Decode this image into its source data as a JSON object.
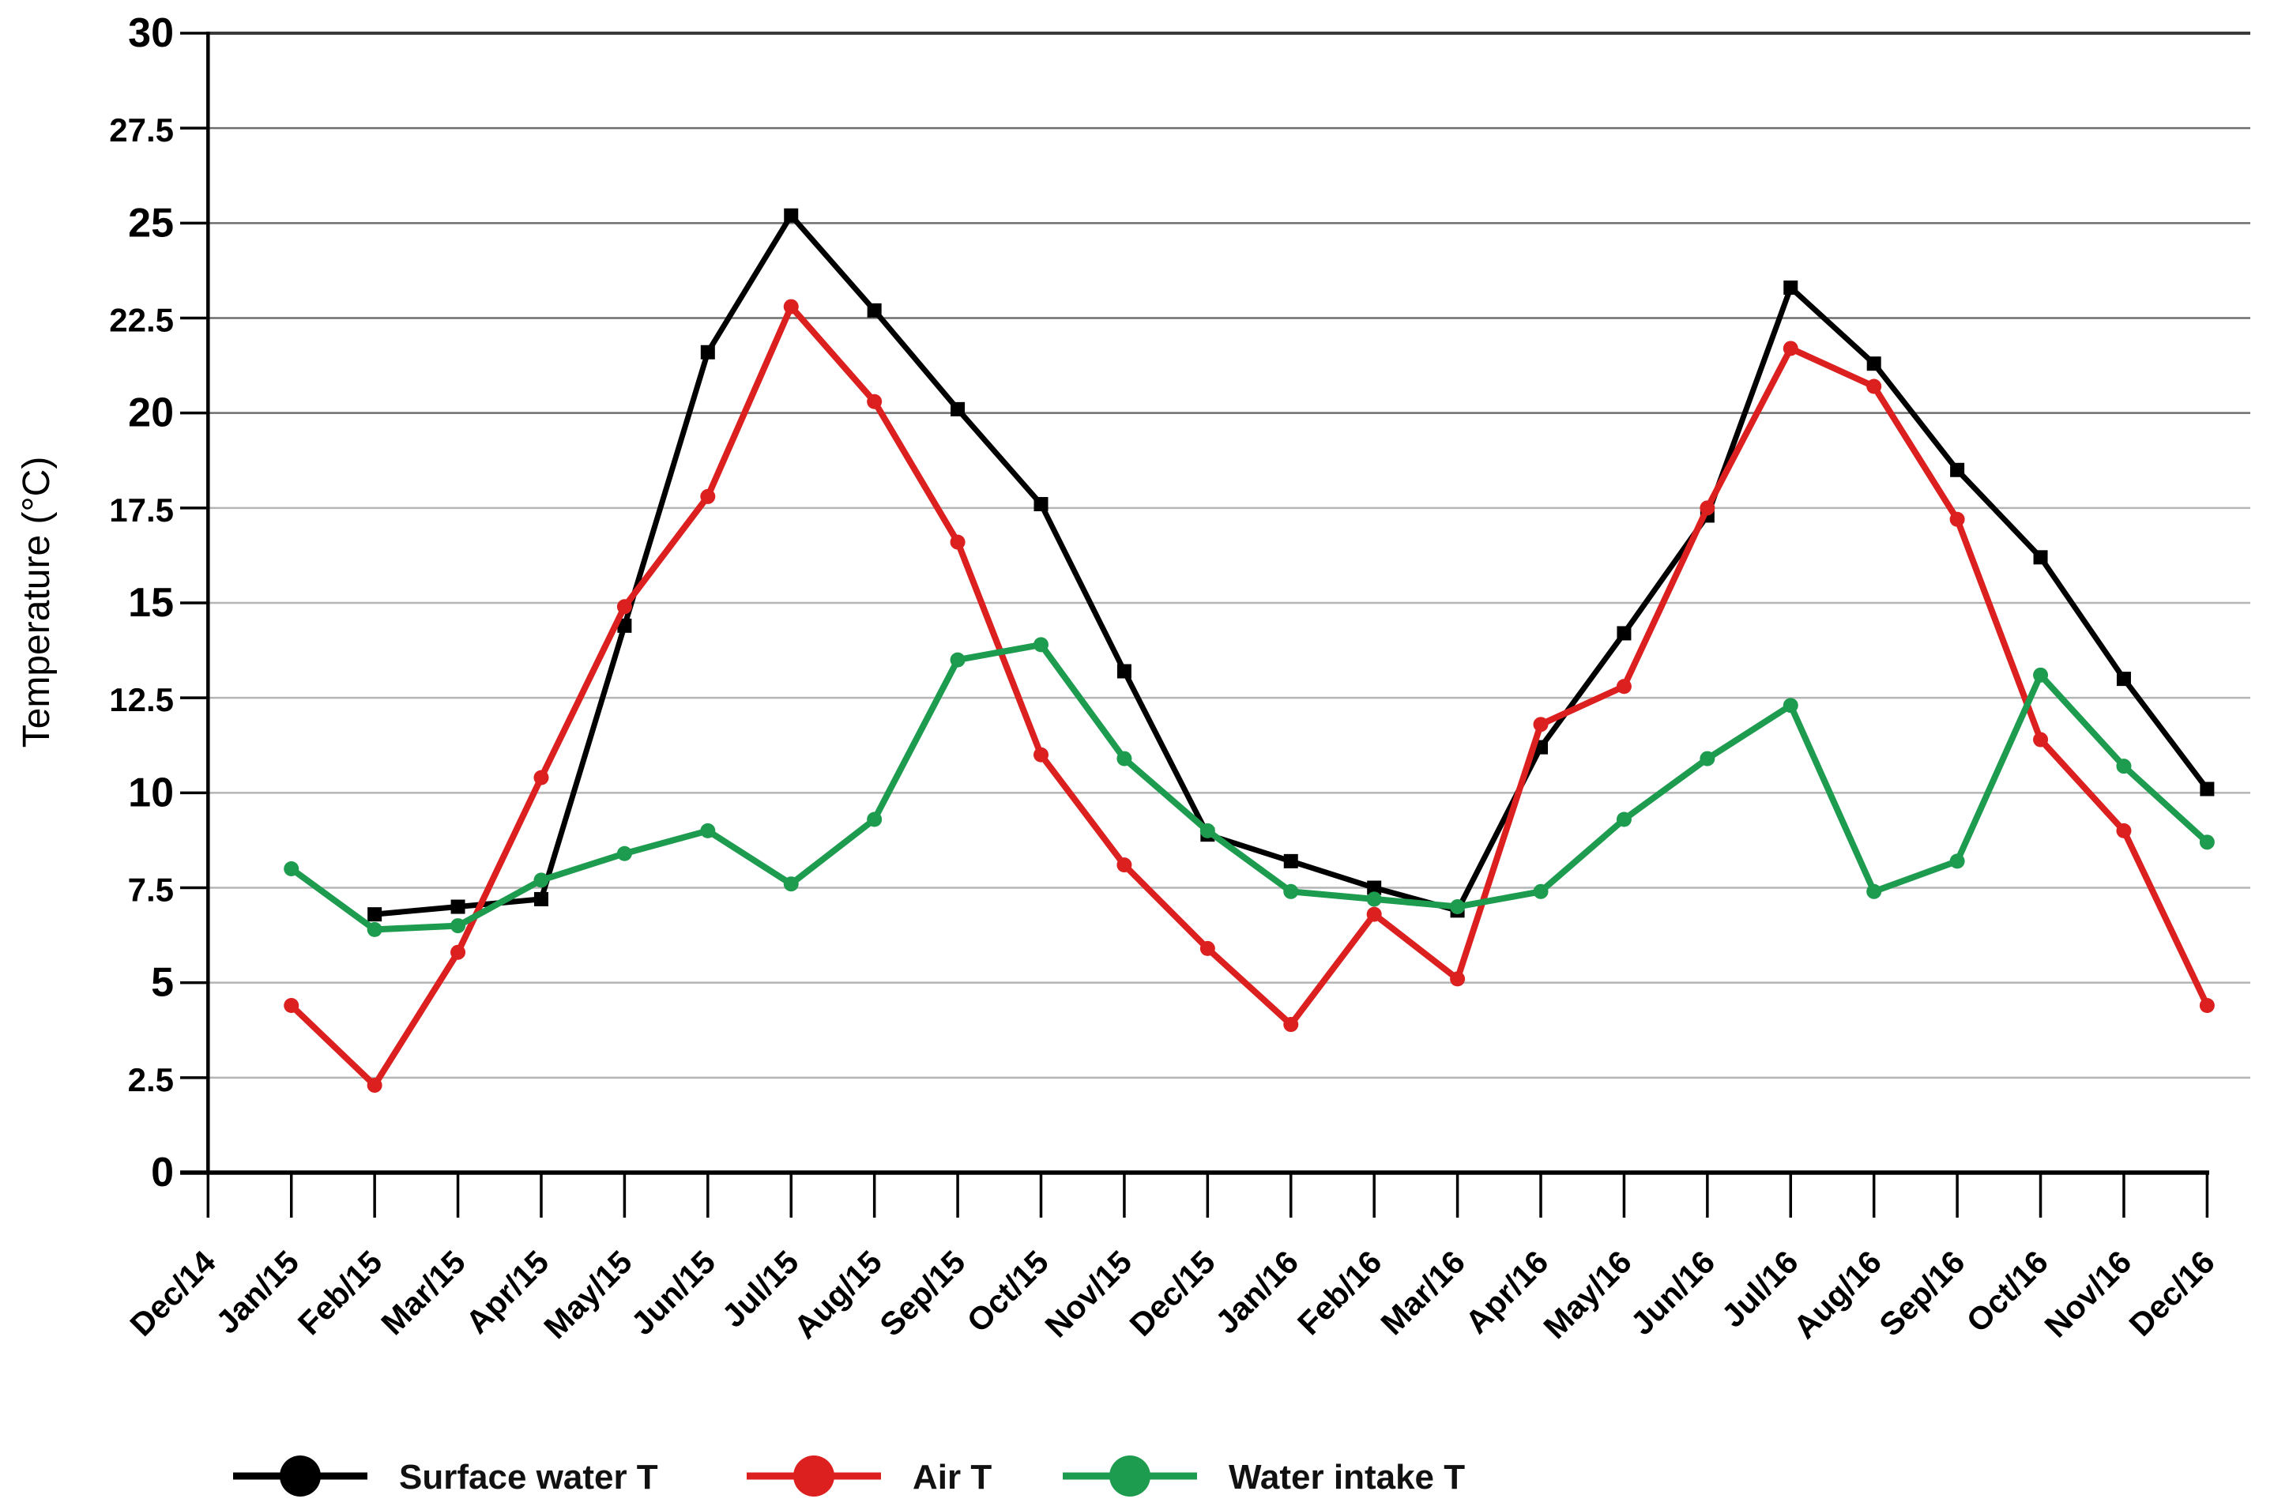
{
  "chart_data": {
    "type": "line",
    "title": "",
    "xlabel": "",
    "ylabel": "Temperature (°C)",
    "ylim": [
      0,
      30
    ],
    "ytick_step": 2.5,
    "grid": "horizontal",
    "legend_position": "bottom",
    "categories": [
      "Dec/14",
      "Jan/15",
      "Feb/15",
      "Mar/15",
      "Apr/15",
      "May/15",
      "Jun/15",
      "Jul/15",
      "Aug/15",
      "Sep/15",
      "Oct/15",
      "Nov/15",
      "Dec/15",
      "Jan/16",
      "Feb/16",
      "Mar/16",
      "Apr/16",
      "May/16",
      "Jun/16",
      "Jul/16",
      "Aug/16",
      "Sep/16",
      "Oct/16",
      "Nov/16",
      "Dec/16"
    ],
    "series": [
      {
        "name": "Surface water T",
        "color": "#000000",
        "marker": "square",
        "values": [
          null,
          null,
          6.8,
          7.0,
          7.2,
          14.4,
          21.6,
          25.2,
          22.7,
          20.1,
          17.6,
          13.2,
          8.9,
          8.2,
          7.5,
          6.9,
          11.2,
          14.2,
          17.3,
          23.3,
          21.3,
          18.5,
          16.2,
          13.0,
          10.1
        ]
      },
      {
        "name": "Air T",
        "color": "#dc1f1f",
        "marker": "circle",
        "values": [
          null,
          4.4,
          2.3,
          5.8,
          10.4,
          14.9,
          17.8,
          22.8,
          20.3,
          16.6,
          11.0,
          8.1,
          5.9,
          3.9,
          6.8,
          5.1,
          11.8,
          12.8,
          17.5,
          21.7,
          20.7,
          17.2,
          11.4,
          9.0,
          4.4
        ]
      },
      {
        "name": "Water intake T",
        "color": "#1d9b4e",
        "marker": "circle",
        "values": [
          null,
          8.0,
          6.4,
          6.5,
          7.7,
          8.4,
          9.0,
          7.6,
          9.3,
          13.5,
          13.9,
          10.9,
          9.0,
          7.4,
          7.2,
          7.0,
          7.4,
          9.3,
          10.9,
          12.3,
          7.4,
          8.2,
          13.1,
          10.7,
          8.7
        ]
      }
    ],
    "yticks_major": [
      "0",
      "5",
      "10",
      "15",
      "20",
      "25",
      "30"
    ],
    "yticks_minor": [
      "2.5",
      "7.5",
      "12.5",
      "17.5",
      "22.5",
      "27.5"
    ]
  }
}
